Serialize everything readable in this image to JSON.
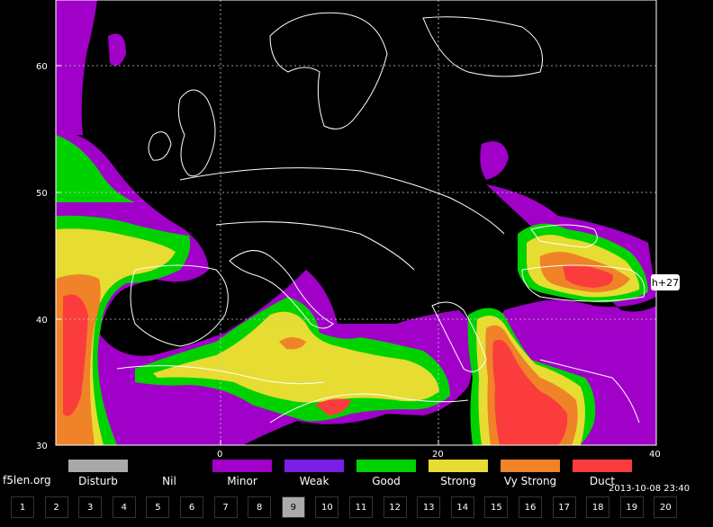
{
  "map": {
    "lat_labels": [
      "60",
      "50",
      "40",
      "30"
    ],
    "lon_labels": [
      "0",
      "20",
      "40"
    ],
    "hour_tag": "h+27"
  },
  "legend": [
    {
      "label": "Disturb",
      "color": "#a9a9a9"
    },
    {
      "label": "Nil",
      "color": "#000000"
    },
    {
      "label": "Minor",
      "color": "#a000c8"
    },
    {
      "label": "Weak",
      "color": "#7a1ee6"
    },
    {
      "label": "Good",
      "color": "#00d200"
    },
    {
      "label": "Strong",
      "color": "#e6dc32"
    },
    {
      "label": "Vy Strong",
      "color": "#f08228"
    },
    {
      "label": "Duct",
      "color": "#fa3c3c"
    }
  ],
  "footer": {
    "site": "f5len.org",
    "timestamp": "2013-10-08 23:40"
  },
  "frames": {
    "items": [
      "1",
      "2",
      "3",
      "4",
      "5",
      "6",
      "7",
      "8",
      "9",
      "10",
      "11",
      "12",
      "13",
      "14",
      "15",
      "16",
      "17",
      "18",
      "19",
      "20"
    ],
    "active": "9"
  }
}
